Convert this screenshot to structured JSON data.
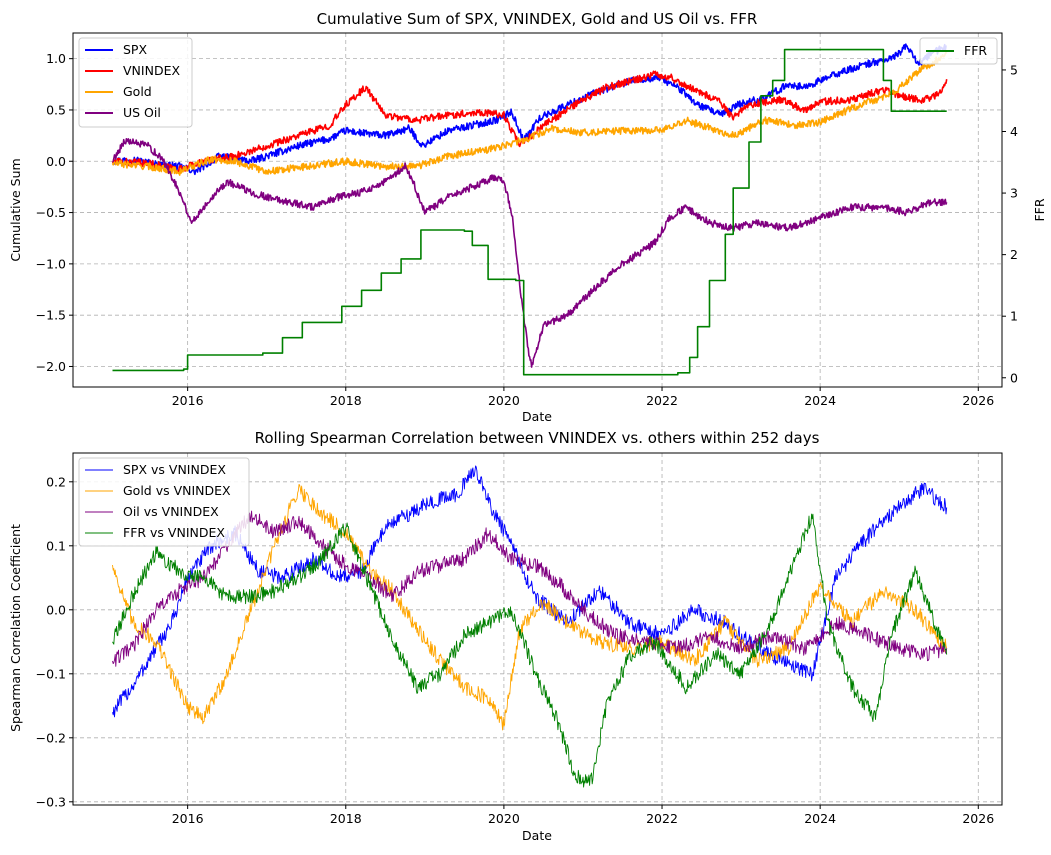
{
  "chart_data": [
    {
      "type": "line",
      "title": "Cumulative Sum of SPX, VNINDEX, Gold and US Oil vs. FFR",
      "xlabel": "Date",
      "ylabel": "Cumulative Sum",
      "ylabel_right": "FFR",
      "xlim": [
        2014.55,
        2026.3
      ],
      "ylim": [
        -2.2,
        1.25
      ],
      "ylim_right": [
        -0.15,
        5.6
      ],
      "xticks": [
        2016,
        2018,
        2020,
        2022,
        2024,
        2026
      ],
      "xtick_labels": [
        "2016",
        "2018",
        "2020",
        "2022",
        "2024",
        "2026"
      ],
      "yticks": [
        -2.0,
        -1.5,
        -1.0,
        -0.5,
        0.0,
        0.5,
        1.0
      ],
      "ytick_labels": [
        "−2.0",
        "−1.5",
        "−1.0",
        "−0.5",
        "0.0",
        "0.5",
        "1.0"
      ],
      "yticks_right": [
        0,
        1,
        2,
        3,
        4,
        5
      ],
      "ytick_labels_right": [
        "0",
        "1",
        "2",
        "3",
        "4",
        "5"
      ],
      "grid": true,
      "legend_left_position": "upper-left",
      "legend_right_position": "upper-right",
      "series": [
        {
          "name": "SPX",
          "color": "#0000ff",
          "axis": "left",
          "x": [
            2015.05,
            2015.3,
            2015.6,
            2015.9,
            2016.1,
            2016.4,
            2016.8,
            2017.0,
            2017.4,
            2017.8,
            2018.0,
            2018.15,
            2018.5,
            2018.8,
            2018.97,
            2019.3,
            2019.6,
            2019.9,
            2020.1,
            2020.25,
            2020.45,
            2020.8,
            2021.2,
            2021.6,
            2021.95,
            2022.2,
            2022.45,
            2022.75,
            2022.95,
            2023.3,
            2023.6,
            2023.8,
            2024.2,
            2024.6,
            2024.9,
            2025.1,
            2025.25,
            2025.4,
            2025.6
          ],
          "values": [
            0.0,
            0.02,
            -0.03,
            -0.05,
            -0.1,
            0.05,
            0.0,
            0.05,
            0.15,
            0.22,
            0.3,
            0.28,
            0.25,
            0.32,
            0.15,
            0.3,
            0.35,
            0.4,
            0.48,
            0.2,
            0.42,
            0.55,
            0.68,
            0.78,
            0.82,
            0.72,
            0.55,
            0.45,
            0.55,
            0.62,
            0.75,
            0.72,
            0.85,
            0.95,
            1.0,
            1.12,
            0.95,
            1.05,
            1.12
          ]
        },
        {
          "name": "VNINDEX",
          "color": "#ff0000",
          "axis": "left",
          "x": [
            2015.05,
            2015.5,
            2015.9,
            2016.2,
            2016.6,
            2017.0,
            2017.4,
            2017.8,
            2018.0,
            2018.25,
            2018.5,
            2018.9,
            2019.3,
            2019.7,
            2020.0,
            2020.2,
            2020.5,
            2020.9,
            2021.3,
            2021.6,
            2021.9,
            2022.1,
            2022.4,
            2022.7,
            2022.9,
            2023.1,
            2023.5,
            2023.8,
            2024.0,
            2024.4,
            2024.8,
            2025.1,
            2025.3,
            2025.5,
            2025.6
          ],
          "values": [
            0.0,
            -0.02,
            -0.08,
            0.0,
            0.05,
            0.15,
            0.25,
            0.35,
            0.55,
            0.72,
            0.45,
            0.4,
            0.45,
            0.48,
            0.45,
            0.15,
            0.35,
            0.55,
            0.72,
            0.78,
            0.85,
            0.82,
            0.7,
            0.6,
            0.42,
            0.55,
            0.6,
            0.5,
            0.58,
            0.6,
            0.7,
            0.62,
            0.6,
            0.65,
            0.8
          ]
        },
        {
          "name": "Gold",
          "color": "#ffa500",
          "axis": "left",
          "x": [
            2015.05,
            2015.5,
            2015.9,
            2016.3,
            2016.6,
            2017.0,
            2017.5,
            2018.0,
            2018.5,
            2018.9,
            2019.3,
            2019.7,
            2020.0,
            2020.3,
            2020.6,
            2021.0,
            2021.5,
            2022.0,
            2022.3,
            2022.7,
            2022.9,
            2023.3,
            2023.7,
            2024.0,
            2024.5,
            2024.9,
            2025.2,
            2025.4,
            2025.6
          ],
          "values": [
            -0.02,
            -0.05,
            -0.1,
            0.02,
            0.0,
            -0.1,
            -0.05,
            0.0,
            -0.05,
            -0.05,
            0.05,
            0.1,
            0.15,
            0.22,
            0.32,
            0.28,
            0.3,
            0.3,
            0.4,
            0.3,
            0.25,
            0.4,
            0.35,
            0.38,
            0.55,
            0.65,
            0.85,
            0.95,
            1.05
          ]
        },
        {
          "name": "US Oil",
          "color": "#800080",
          "axis": "left",
          "x": [
            2015.05,
            2015.2,
            2015.5,
            2015.7,
            2015.9,
            2016.05,
            2016.3,
            2016.5,
            2016.8,
            2017.0,
            2017.3,
            2017.6,
            2017.9,
            2018.2,
            2018.5,
            2018.75,
            2018.85,
            2019.0,
            2019.3,
            2019.6,
            2019.9,
            2020.0,
            2020.1,
            2020.2,
            2020.3,
            2020.35,
            2020.5,
            2020.8,
            2021.2,
            2021.5,
            2021.9,
            2022.1,
            2022.3,
            2022.6,
            2022.9,
            2023.2,
            2023.6,
            2024.0,
            2024.4,
            2024.8,
            2025.1,
            2025.4,
            2025.6
          ],
          "values": [
            0.0,
            0.2,
            0.15,
            0.0,
            -0.3,
            -0.6,
            -0.35,
            -0.2,
            -0.3,
            -0.35,
            -0.4,
            -0.45,
            -0.35,
            -0.3,
            -0.2,
            -0.05,
            -0.2,
            -0.5,
            -0.35,
            -0.25,
            -0.15,
            -0.2,
            -0.5,
            -1.2,
            -1.8,
            -2.0,
            -1.6,
            -1.5,
            -1.2,
            -1.0,
            -0.8,
            -0.55,
            -0.45,
            -0.6,
            -0.65,
            -0.6,
            -0.65,
            -0.55,
            -0.45,
            -0.45,
            -0.5,
            -0.4,
            -0.4
          ]
        },
        {
          "name": "FFR",
          "color": "#008000",
          "axis": "right",
          "step": true,
          "x": [
            2015.05,
            2015.95,
            2016.0,
            2016.95,
            2017.2,
            2017.45,
            2017.95,
            2018.2,
            2018.45,
            2018.7,
            2018.95,
            2019.5,
            2019.6,
            2019.8,
            2020.15,
            2020.25,
            2022.2,
            2022.35,
            2022.45,
            2022.6,
            2022.8,
            2022.9,
            2023.1,
            2023.25,
            2023.4,
            2023.55,
            2024.7,
            2024.8,
            2024.9,
            2025.6
          ],
          "values": [
            0.12,
            0.14,
            0.37,
            0.4,
            0.65,
            0.9,
            1.16,
            1.42,
            1.7,
            1.93,
            2.4,
            2.38,
            2.15,
            1.6,
            1.58,
            0.05,
            0.08,
            0.33,
            0.83,
            1.58,
            2.33,
            3.08,
            3.83,
            4.58,
            4.83,
            5.33,
            5.33,
            4.83,
            4.33,
            4.33
          ]
        }
      ]
    },
    {
      "type": "line",
      "title": "Rolling Spearman Correlation between VNINDEX vs. others within 252 days",
      "xlabel": "Date",
      "ylabel": "Spearman Correlation Coefficient",
      "xlim": [
        2014.55,
        2026.3
      ],
      "ylim": [
        -0.305,
        0.245
      ],
      "xticks": [
        2016,
        2018,
        2020,
        2022,
        2024,
        2026
      ],
      "xtick_labels": [
        "2016",
        "2018",
        "2020",
        "2022",
        "2024",
        "2026"
      ],
      "yticks": [
        -0.3,
        -0.2,
        -0.1,
        0.0,
        0.1,
        0.2
      ],
      "ytick_labels": [
        "−0.3",
        "−0.2",
        "−0.1",
        "0.0",
        "0.1",
        "0.2"
      ],
      "grid": true,
      "legend_position": "upper-left",
      "series": [
        {
          "name": "SPX vs VNINDEX",
          "color": "#0000ff",
          "x": [
            2015.05,
            2015.3,
            2015.6,
            2015.8,
            2016.0,
            2016.3,
            2016.6,
            2016.9,
            2017.2,
            2017.6,
            2017.9,
            2018.2,
            2018.5,
            2018.8,
            2019.1,
            2019.4,
            2019.65,
            2019.8,
            2020.1,
            2020.4,
            2020.8,
            2021.2,
            2021.6,
            2022.0,
            2022.4,
            2022.8,
            2023.1,
            2023.5,
            2023.9,
            2024.2,
            2024.5,
            2024.8,
            2025.1,
            2025.3,
            2025.6
          ],
          "values": [
            -0.16,
            -0.12,
            -0.06,
            -0.02,
            0.05,
            0.1,
            0.12,
            0.06,
            0.05,
            0.08,
            0.05,
            0.06,
            0.13,
            0.15,
            0.17,
            0.18,
            0.22,
            0.17,
            0.1,
            0.02,
            -0.02,
            0.03,
            -0.02,
            -0.04,
            0.0,
            -0.02,
            -0.05,
            -0.08,
            -0.1,
            0.05,
            0.1,
            0.14,
            0.17,
            0.19,
            0.16
          ]
        },
        {
          "name": "Gold vs VNINDEX",
          "color": "#ffa500",
          "x": [
            2015.05,
            2015.3,
            2015.6,
            2015.8,
            2016.0,
            2016.2,
            2016.5,
            2016.8,
            2017.1,
            2017.4,
            2017.7,
            2018.0,
            2018.3,
            2018.6,
            2018.9,
            2019.2,
            2019.5,
            2019.8,
            2020.0,
            2020.2,
            2020.5,
            2020.8,
            2021.2,
            2021.6,
            2022.0,
            2022.4,
            2022.8,
            2023.2,
            2023.6,
            2024.0,
            2024.4,
            2024.8,
            2025.2,
            2025.6
          ],
          "values": [
            0.07,
            -0.02,
            -0.05,
            -0.1,
            -0.15,
            -0.17,
            -0.1,
            0.0,
            0.1,
            0.19,
            0.15,
            0.12,
            0.06,
            0.03,
            -0.03,
            -0.08,
            -0.12,
            -0.14,
            -0.18,
            -0.03,
            0.01,
            -0.02,
            -0.05,
            -0.06,
            -0.05,
            -0.08,
            -0.02,
            -0.08,
            -0.06,
            0.04,
            -0.02,
            0.03,
            0.0,
            -0.06
          ]
        },
        {
          "name": "Oil vs VNINDEX",
          "color": "#800080",
          "x": [
            2015.05,
            2015.3,
            2015.6,
            2015.9,
            2016.2,
            2016.5,
            2016.8,
            2017.1,
            2017.4,
            2017.7,
            2018.0,
            2018.3,
            2018.6,
            2018.9,
            2019.2,
            2019.5,
            2019.8,
            2020.1,
            2020.4,
            2020.7,
            2021.0,
            2021.4,
            2021.8,
            2022.2,
            2022.6,
            2023.0,
            2023.4,
            2023.8,
            2024.2,
            2024.6,
            2025.0,
            2025.3,
            2025.6
          ],
          "values": [
            -0.08,
            -0.06,
            0.0,
            0.03,
            0.05,
            0.1,
            0.15,
            0.12,
            0.14,
            0.1,
            0.07,
            0.05,
            0.02,
            0.06,
            0.07,
            0.08,
            0.12,
            0.08,
            0.07,
            0.04,
            0.0,
            -0.04,
            -0.05,
            -0.06,
            -0.04,
            -0.06,
            -0.04,
            -0.06,
            -0.02,
            -0.04,
            -0.06,
            -0.07,
            -0.06
          ]
        },
        {
          "name": "FFR vs VNINDEX",
          "color": "#008000",
          "x": [
            2015.05,
            2015.3,
            2015.6,
            2015.9,
            2016.2,
            2016.5,
            2016.8,
            2017.1,
            2017.4,
            2017.7,
            2018.0,
            2018.3,
            2018.6,
            2018.9,
            2019.2,
            2019.5,
            2019.8,
            2020.1,
            2020.4,
            2020.7,
            2020.9,
            2021.1,
            2021.3,
            2021.6,
            2021.9,
            2022.3,
            2022.7,
            2023.0,
            2023.3,
            2023.6,
            2023.9,
            2024.1,
            2024.4,
            2024.7,
            2024.9,
            2025.2,
            2025.6
          ],
          "values": [
            -0.05,
            0.02,
            0.09,
            0.06,
            0.05,
            0.02,
            0.02,
            0.03,
            0.05,
            0.08,
            0.13,
            0.04,
            -0.05,
            -0.12,
            -0.1,
            -0.04,
            -0.02,
            0.0,
            -0.1,
            -0.18,
            -0.26,
            -0.27,
            -0.15,
            -0.07,
            -0.05,
            -0.12,
            -0.07,
            -0.1,
            -0.04,
            0.05,
            0.15,
            -0.02,
            -0.12,
            -0.17,
            -0.04,
            0.06,
            -0.07
          ]
        }
      ]
    }
  ]
}
